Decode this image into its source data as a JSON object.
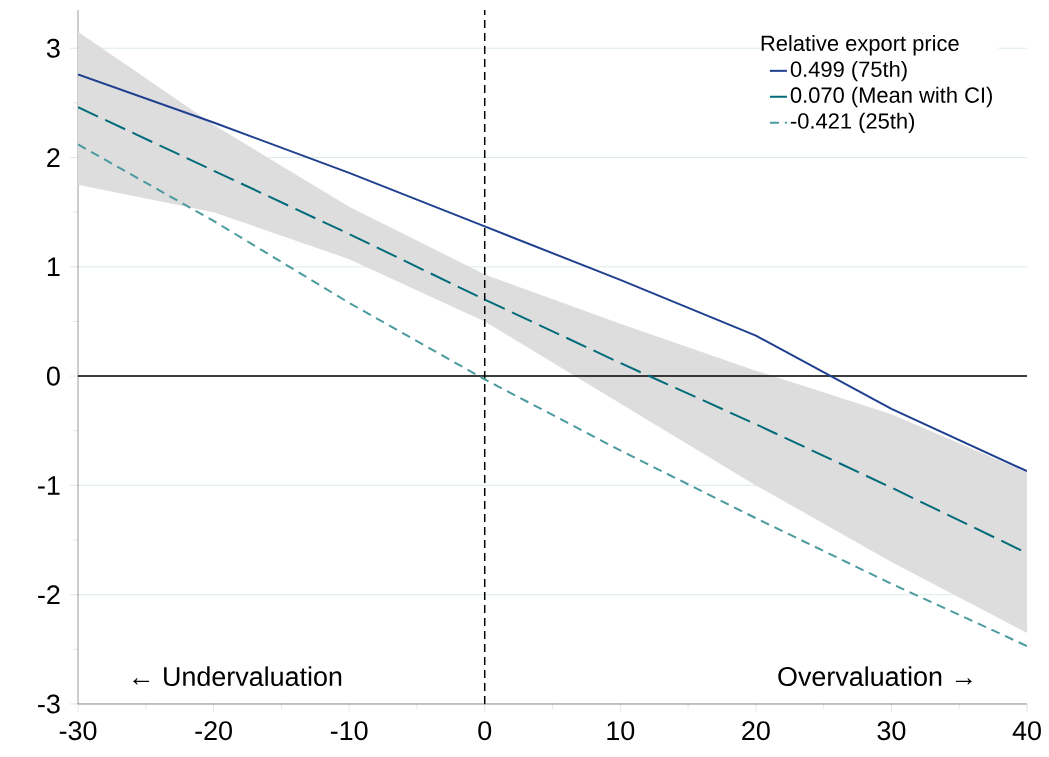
{
  "chart_data": {
    "type": "line",
    "x": [
      -30,
      -20,
      -10,
      0,
      10,
      20,
      30,
      40
    ],
    "series": [
      {
        "name": "0.499 (75th)",
        "color": "#1f3f8f",
        "line_style": "solid",
        "values": [
          2.76,
          2.32,
          1.86,
          1.37,
          0.88,
          0.37,
          -0.3,
          -0.87
        ]
      },
      {
        "name": "0.070 (Mean with CI)",
        "color": "#006b7a",
        "line_style": "dashed",
        "values": [
          2.46,
          1.88,
          1.3,
          0.7,
          0.12,
          -0.44,
          -1.02,
          -1.62
        ],
        "lower": [
          1.75,
          1.5,
          1.07,
          0.5,
          -0.25,
          -1.0,
          -1.7,
          -2.35
        ],
        "upper": [
          3.15,
          2.3,
          1.55,
          0.93,
          0.48,
          0.05,
          -0.35,
          -0.88
        ]
      },
      {
        "name": "-0.421 (25th)",
        "color": "#4a9a9e",
        "line_style": "dashed",
        "values": [
          2.12,
          1.42,
          0.67,
          -0.03,
          -0.68,
          -1.3,
          -1.9,
          -2.47
        ]
      }
    ],
    "legend_title": "Relative export price",
    "legend": "top right",
    "xlim": [
      -30,
      40
    ],
    "xticks": [
      -30,
      -20,
      -10,
      0,
      10,
      20,
      30,
      40
    ],
    "ylim": [
      -3,
      3.35
    ],
    "yticks": [
      -3,
      -2,
      -1,
      0,
      1,
      2,
      3
    ],
    "grid": "y",
    "ref_lines": [
      {
        "axis": "x",
        "value": 0,
        "line_style": "dashed",
        "color": "#000000"
      },
      {
        "axis": "y",
        "value": 0,
        "line_style": "solid",
        "color": "#000000"
      }
    ],
    "annotations": [
      "← Undervaluation",
      "Overvaluation →"
    ]
  }
}
